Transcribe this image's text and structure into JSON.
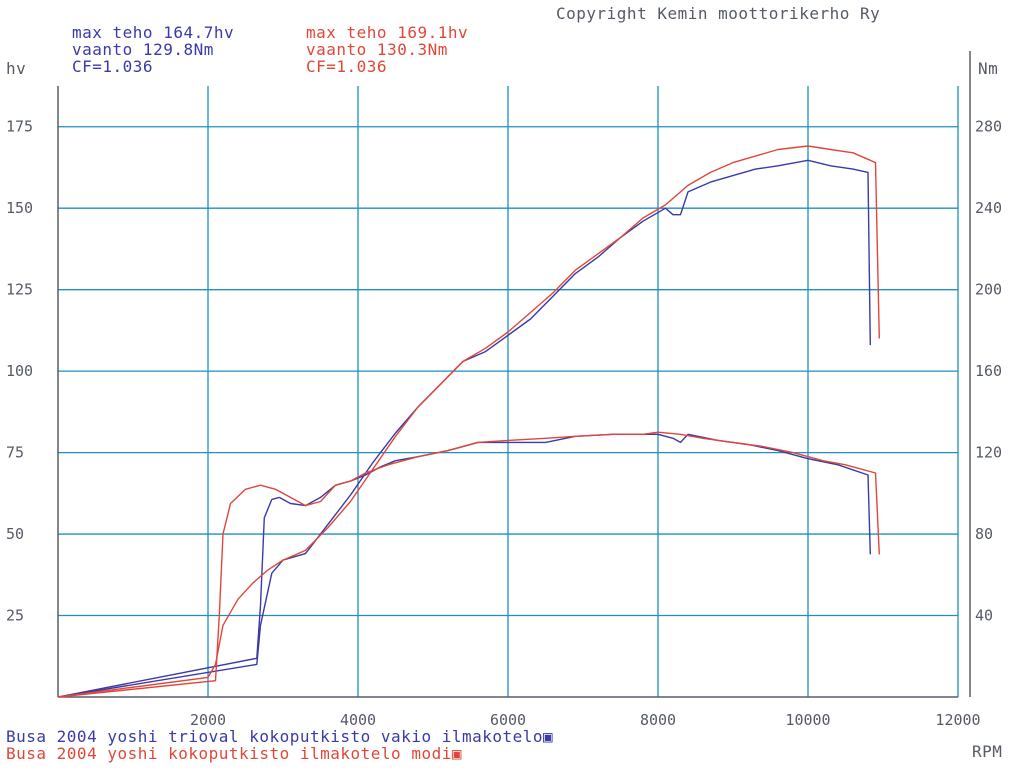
{
  "copyright": "Copyright Kemin moottorikerho Ry",
  "colors": {
    "blue": "#3a3aa8",
    "red": "#e0473a",
    "grid": "#1f8fc0",
    "axis": "#5a5f6a"
  },
  "run_blue": {
    "max_power": "max teho 164.7hv",
    "torque": "vaanto 129.8Nm",
    "cf": "CF=1.036",
    "legend": "Busa 2004 yoshi trioval kokoputkisto vakio ilmakotelo"
  },
  "run_red": {
    "max_power": "max teho 169.1hv",
    "torque": "vaanto 130.3Nm",
    "cf": "CF=1.036",
    "legend": "Busa 2004 yoshi kokoputkisto ilmakotelo modi"
  },
  "chart_data": {
    "type": "line",
    "xlabel": "RPM",
    "ylabel_left": "hv",
    "ylabel_right": "Nm",
    "xlim": [
      0,
      12000
    ],
    "ylim_left": [
      0,
      187.5
    ],
    "ylim_right": [
      0,
      300
    ],
    "x_ticks": [
      2000,
      4000,
      6000,
      8000,
      10000,
      12000
    ],
    "y_left_ticks": [
      25,
      50,
      75,
      100,
      125,
      150,
      175
    ],
    "y_right_ticks": [
      40,
      80,
      120,
      160,
      200,
      240,
      280
    ],
    "grid": true,
    "series": [
      {
        "color": "#3a3aa8",
        "axis": "right",
        "quantity": "torque",
        "points": [
          [
            0,
            0
          ],
          [
            2650,
            19
          ],
          [
            2700,
            45
          ],
          [
            2750,
            88
          ],
          [
            2850,
            97
          ],
          [
            2950,
            98
          ],
          [
            3100,
            95
          ],
          [
            3300,
            94
          ],
          [
            3500,
            98
          ],
          [
            3700,
            104
          ],
          [
            3900,
            106
          ],
          [
            4100,
            109
          ],
          [
            4300,
            113
          ],
          [
            4500,
            116
          ],
          [
            4800,
            118
          ],
          [
            5200,
            121
          ],
          [
            5600,
            125
          ],
          [
            6000,
            125
          ],
          [
            6500,
            125
          ],
          [
            6900,
            128
          ],
          [
            7400,
            129
          ],
          [
            7800,
            129
          ],
          [
            8000,
            129
          ],
          [
            8200,
            127
          ],
          [
            8300,
            125
          ],
          [
            8400,
            129
          ],
          [
            8800,
            126
          ],
          [
            9200,
            124
          ],
          [
            9600,
            121
          ],
          [
            10000,
            117
          ],
          [
            10400,
            114
          ],
          [
            10800,
            109
          ],
          [
            10830,
            70
          ]
        ]
      },
      {
        "color": "#3a3aa8",
        "axis": "left",
        "quantity": "power",
        "points": [
          [
            0,
            0
          ],
          [
            2650,
            10
          ],
          [
            2700,
            22
          ],
          [
            2850,
            38
          ],
          [
            3000,
            42
          ],
          [
            3300,
            44
          ],
          [
            3600,
            53
          ],
          [
            3900,
            62
          ],
          [
            4200,
            72
          ],
          [
            4500,
            81
          ],
          [
            4800,
            89
          ],
          [
            5100,
            96
          ],
          [
            5400,
            103
          ],
          [
            5700,
            106
          ],
          [
            6000,
            111
          ],
          [
            6300,
            116
          ],
          [
            6600,
            123
          ],
          [
            6900,
            130
          ],
          [
            7200,
            135
          ],
          [
            7500,
            141
          ],
          [
            7800,
            146
          ],
          [
            8100,
            150
          ],
          [
            8200,
            148
          ],
          [
            8300,
            148
          ],
          [
            8400,
            155
          ],
          [
            8700,
            158
          ],
          [
            9000,
            160
          ],
          [
            9300,
            162
          ],
          [
            9600,
            163
          ],
          [
            10000,
            164.7
          ],
          [
            10300,
            163
          ],
          [
            10600,
            162
          ],
          [
            10800,
            161
          ],
          [
            10830,
            108
          ]
        ]
      },
      {
        "color": "#e0473a",
        "axis": "right",
        "quantity": "torque",
        "points": [
          [
            0,
            0
          ],
          [
            2100,
            8
          ],
          [
            2150,
            40
          ],
          [
            2200,
            80
          ],
          [
            2300,
            95
          ],
          [
            2500,
            102
          ],
          [
            2700,
            104
          ],
          [
            2900,
            102
          ],
          [
            3100,
            98
          ],
          [
            3300,
            94
          ],
          [
            3500,
            96
          ],
          [
            3700,
            104
          ],
          [
            3900,
            106
          ],
          [
            4100,
            110
          ],
          [
            4400,
            114
          ],
          [
            4800,
            118
          ],
          [
            5200,
            121
          ],
          [
            5600,
            125
          ],
          [
            6000,
            126
          ],
          [
            6500,
            127
          ],
          [
            6900,
            128
          ],
          [
            7400,
            129
          ],
          [
            7800,
            129
          ],
          [
            8000,
            130
          ],
          [
            8300,
            129
          ],
          [
            8600,
            127
          ],
          [
            9000,
            125
          ],
          [
            9400,
            123
          ],
          [
            9800,
            120
          ],
          [
            10200,
            116
          ],
          [
            10500,
            114
          ],
          [
            10900,
            110
          ],
          [
            10950,
            70
          ]
        ]
      },
      {
        "color": "#e0473a",
        "axis": "left",
        "quantity": "power",
        "points": [
          [
            0,
            0
          ],
          [
            2000,
            6
          ],
          [
            2100,
            10
          ],
          [
            2200,
            22
          ],
          [
            2400,
            30
          ],
          [
            2600,
            35
          ],
          [
            2800,
            39
          ],
          [
            3000,
            42
          ],
          [
            3300,
            45
          ],
          [
            3600,
            52
          ],
          [
            3900,
            60
          ],
          [
            4200,
            70
          ],
          [
            4500,
            80
          ],
          [
            4800,
            89
          ],
          [
            5100,
            96
          ],
          [
            5400,
            103
          ],
          [
            5700,
            107
          ],
          [
            6000,
            112
          ],
          [
            6300,
            118
          ],
          [
            6600,
            124
          ],
          [
            6900,
            131
          ],
          [
            7200,
            136
          ],
          [
            7500,
            141
          ],
          [
            7800,
            147
          ],
          [
            8100,
            151
          ],
          [
            8400,
            157
          ],
          [
            8700,
            161
          ],
          [
            9000,
            164
          ],
          [
            9300,
            166
          ],
          [
            9600,
            168
          ],
          [
            10000,
            169.1
          ],
          [
            10300,
            168
          ],
          [
            10600,
            167
          ],
          [
            10800,
            165
          ],
          [
            10900,
            164
          ],
          [
            10950,
            110
          ]
        ]
      }
    ]
  }
}
